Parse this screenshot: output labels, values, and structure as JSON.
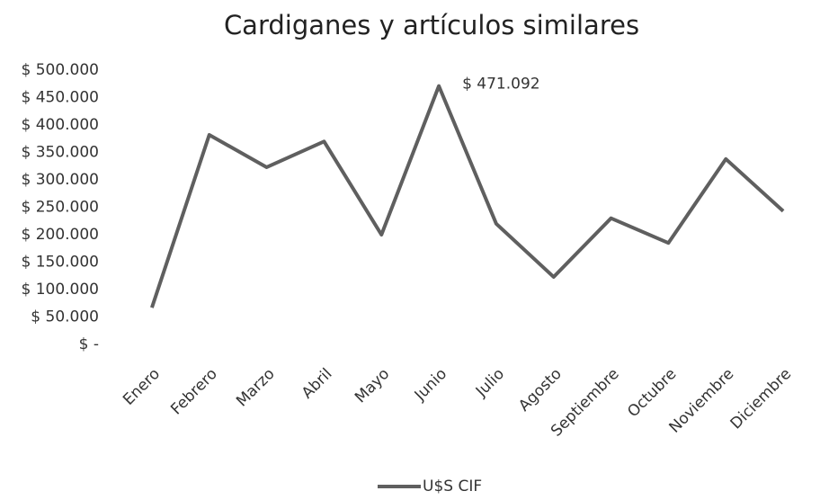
{
  "chart_data": {
    "type": "line",
    "title": "Cardiganes y artículos similares",
    "categories": [
      "Enero",
      "Febrero",
      "Marzo",
      "Abril",
      "Mayo",
      "Junio",
      "Julio",
      "Agosto",
      "Septiembre",
      "Octubre",
      "Noviembre",
      "Diciembre"
    ],
    "series": [
      {
        "name": "U$S CIF",
        "color": "#5f5f5f",
        "values": [
          67000,
          382000,
          323000,
          370000,
          200000,
          471092,
          220000,
          123000,
          230000,
          185000,
          338000,
          243000
        ],
        "value_labels": [
          null,
          null,
          null,
          null,
          null,
          "$ 471.092",
          null,
          null,
          null,
          null,
          null,
          null
        ]
      }
    ],
    "ylim": [
      0,
      500000
    ],
    "yticks": [
      {
        "value": 0,
        "label": "$ -"
      },
      {
        "value": 50000,
        "label": "$ 50.000"
      },
      {
        "value": 100000,
        "label": "$ 100.000"
      },
      {
        "value": 150000,
        "label": "$ 150.000"
      },
      {
        "value": 200000,
        "label": "$ 200.000"
      },
      {
        "value": 250000,
        "label": "$ 250.000"
      },
      {
        "value": 300000,
        "label": "$ 300.000"
      },
      {
        "value": 350000,
        "label": "$ 350.000"
      },
      {
        "value": 400000,
        "label": "$ 400.000"
      },
      {
        "value": 450000,
        "label": "$ 450.000"
      },
      {
        "value": 500000,
        "label": "$ 500.000"
      }
    ],
    "grid": false,
    "legend": "bottom"
  }
}
